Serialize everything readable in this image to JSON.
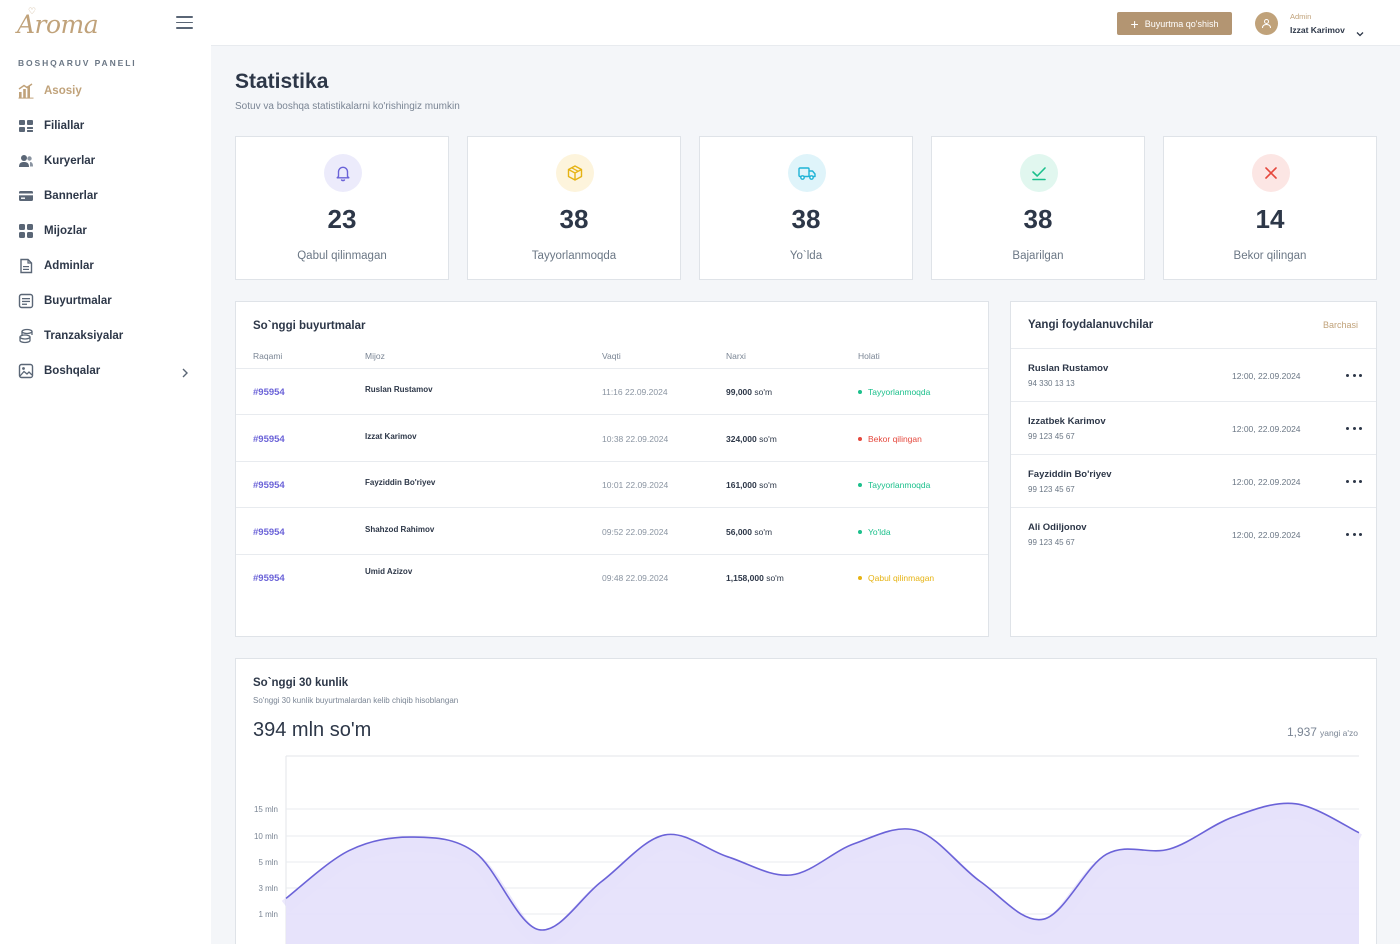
{
  "app": {
    "logo": "Aroma"
  },
  "sidebar": {
    "section_title": "BOSHQARUV PANELI",
    "items": [
      {
        "label": "Asosiy",
        "icon": "chart-bars-icon"
      },
      {
        "label": "Filiallar",
        "icon": "grid-icon"
      },
      {
        "label": "Kuryerlar",
        "icon": "users-icon"
      },
      {
        "label": "Bannerlar",
        "icon": "card-icon"
      },
      {
        "label": "Mijozlar",
        "icon": "apps-icon"
      },
      {
        "label": "Adminlar",
        "icon": "document-icon"
      },
      {
        "label": "Buyurtmalar",
        "icon": "list-icon"
      },
      {
        "label": "Tranzaksiyalar",
        "icon": "coins-icon"
      },
      {
        "label": "Boshqalar",
        "icon": "image-icon"
      }
    ]
  },
  "header": {
    "add_order_label": "Buyurtma qo'shish",
    "user_role": "Admin",
    "user_name": "Izzat Karimov"
  },
  "page": {
    "title": "Statistika",
    "subtitle": "Sotuv va boshqa statistikalarni ko'rishingiz mumkin"
  },
  "stats": [
    {
      "value": "23",
      "label": "Qabul qilinmagan",
      "color": "#6b63d8",
      "bg": "#ecebfb"
    },
    {
      "value": "38",
      "label": "Tayyorlanmoqda",
      "color": "#e6b313",
      "bg": "#fdf4dc"
    },
    {
      "value": "38",
      "label": "Yo`lda",
      "color": "#1fb3d6",
      "bg": "#dff4fa"
    },
    {
      "value": "38",
      "label": "Bajarilgan",
      "color": "#1cc08c",
      "bg": "#e1f7ef"
    },
    {
      "value": "14",
      "label": "Bekor qilingan",
      "color": "#e5483d",
      "bg": "#fce6e4"
    }
  ],
  "orders": {
    "title": "So`nggi buyurtmalar",
    "columns": [
      "Raqami",
      "Mijoz",
      "Vaqti",
      "Narxi",
      "Holati"
    ],
    "rows": [
      {
        "id": "#95954",
        "client": "Ruslan Rustamov",
        "time": "11:16 22.09.2024",
        "price": "99,000",
        "currency": "so'm",
        "status": "Tayyorlanmoqda",
        "status_color": "#1cc08c"
      },
      {
        "id": "#95954",
        "client": "Izzat Karimov",
        "time": "10:38 22.09.2024",
        "price": "324,000",
        "currency": "so'm",
        "status": "Bekor qilingan",
        "status_color": "#e5483d"
      },
      {
        "id": "#95954",
        "client": "Fayziddin Bo'riyev",
        "time": "10:01 22.09.2024",
        "price": "161,000",
        "currency": "so'm",
        "status": "Tayyorlanmoqda",
        "status_color": "#1cc08c"
      },
      {
        "id": "#95954",
        "client": "Shahzod Rahimov",
        "time": "09:52 22.09.2024",
        "price": "56,000",
        "currency": "so'm",
        "status": "Yo'lda",
        "status_color": "#1cc08c"
      },
      {
        "id": "#95954",
        "client": "Umid Azizov",
        "time": "09:48 22.09.2024",
        "price": "1,158,000",
        "currency": "so'm",
        "status": "Qabul qilinmagan",
        "status_color": "#e6b313"
      }
    ]
  },
  "users": {
    "title": "Yangi foydalanuvchilar",
    "see_all": "Barchasi",
    "rows": [
      {
        "name": "Ruslan Rustamov",
        "phone": "94 330 13 13",
        "time": "12:00, 22.09.2024"
      },
      {
        "name": "Izzatbek Karimov",
        "phone": "99 123 45 67",
        "time": "12:00, 22.09.2024"
      },
      {
        "name": "Fayziddin Bo'riyev",
        "phone": "99 123 45 67",
        "time": "12:00, 22.09.2024"
      },
      {
        "name": "Ali Odiljonov",
        "phone": "99 123 45 67",
        "time": "12:00, 22.09.2024"
      }
    ]
  },
  "chart_card": {
    "title": "So`nggi 30 kunlik",
    "subtitle": "So'nggi 30 kunlik buyurtmalardan kelib chiqib hisoblangan",
    "total": "394 mln so'm",
    "users_count": "1,937",
    "users_label": "yangi a'zo"
  },
  "chart_data": {
    "type": "area",
    "y_ticks": [
      "1 mln",
      "3 mln",
      "5 mln",
      "10 mln",
      "15 mln"
    ],
    "y_tick_values": [
      1,
      3,
      5,
      10,
      15
    ],
    "series": [
      {
        "values": [
          2.2,
          7.2,
          9.8,
          6.8,
          0.4,
          3.5,
          10.2,
          6.0,
          4.0,
          8.5,
          11.0,
          3.5,
          0.8,
          6.5,
          7.5,
          13.5,
          16.0,
          10.6
        ]
      }
    ],
    "color": "#6b63d8",
    "fill": "#e6e1fb",
    "grid": true
  }
}
